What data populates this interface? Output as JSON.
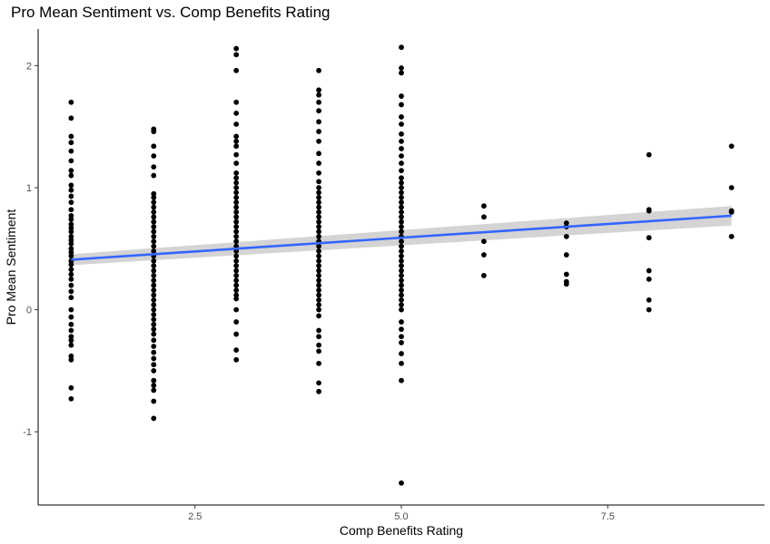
{
  "chart_data": {
    "type": "scatter",
    "title": "Pro Mean Sentiment vs. Comp Benefits Rating",
    "xlabel": "Comp Benefits Rating",
    "ylabel": "Pro Mean Sentiment",
    "xlim": [
      0.6,
      9.4
    ],
    "ylim": [
      -1.6,
      2.3
    ],
    "x_ticks": [
      2.5,
      5.0,
      7.5
    ],
    "x_tick_labels": [
      "2.5",
      "5.0",
      "7.5"
    ],
    "y_ticks": [
      -1,
      0,
      1,
      2
    ],
    "y_tick_labels": [
      "-1",
      "0",
      "1",
      "2"
    ],
    "grid": false,
    "point_color": "#000000",
    "trend": {
      "method": "linear",
      "line_color": "#3366ff",
      "band_color": "#cccccc",
      "x": [
        1,
        9
      ],
      "y": [
        0.41,
        0.77
      ],
      "band_halfwidth": [
        0.045,
        0.08
      ]
    },
    "series": [
      {
        "points": [
          [
            1,
            1.7
          ],
          [
            1,
            1.57
          ],
          [
            1,
            1.42
          ],
          [
            1,
            1.37
          ],
          [
            1,
            1.3
          ],
          [
            1,
            1.22
          ],
          [
            1,
            1.14
          ],
          [
            1,
            1.1
          ],
          [
            1,
            1.02
          ],
          [
            1,
            0.98
          ],
          [
            1,
            0.93
          ],
          [
            1,
            0.88
          ],
          [
            1,
            0.82
          ],
          [
            1,
            0.77
          ],
          [
            1,
            0.74
          ],
          [
            1,
            0.7
          ],
          [
            1,
            0.67
          ],
          [
            1,
            0.64
          ],
          [
            1,
            0.6
          ],
          [
            1,
            0.57
          ],
          [
            1,
            0.54
          ],
          [
            1,
            0.5
          ],
          [
            1,
            0.47
          ],
          [
            1,
            0.44
          ],
          [
            1,
            0.4
          ],
          [
            1,
            0.37
          ],
          [
            1,
            0.33
          ],
          [
            1,
            0.29
          ],
          [
            1,
            0.25
          ],
          [
            1,
            0.2
          ],
          [
            1,
            0.15
          ],
          [
            1,
            0.1
          ],
          [
            1,
            0.0
          ],
          [
            1,
            -0.06
          ],
          [
            1,
            -0.12
          ],
          [
            1,
            -0.17
          ],
          [
            1,
            -0.22
          ],
          [
            1,
            -0.25
          ],
          [
            1,
            -0.29
          ],
          [
            1,
            -0.38
          ],
          [
            1,
            -0.41
          ],
          [
            1,
            -0.64
          ],
          [
            1,
            -0.73
          ],
          [
            2,
            1.48
          ],
          [
            2,
            1.46
          ],
          [
            2,
            1.34
          ],
          [
            2,
            1.26
          ],
          [
            2,
            1.17
          ],
          [
            2,
            1.1
          ],
          [
            2,
            0.95
          ],
          [
            2,
            0.92
          ],
          [
            2,
            0.88
          ],
          [
            2,
            0.84
          ],
          [
            2,
            0.8
          ],
          [
            2,
            0.76
          ],
          [
            2,
            0.72
          ],
          [
            2,
            0.68
          ],
          [
            2,
            0.64
          ],
          [
            2,
            0.6
          ],
          [
            2,
            0.56
          ],
          [
            2,
            0.52
          ],
          [
            2,
            0.48
          ],
          [
            2,
            0.44
          ],
          [
            2,
            0.4
          ],
          [
            2,
            0.36
          ],
          [
            2,
            0.32
          ],
          [
            2,
            0.28
          ],
          [
            2,
            0.24
          ],
          [
            2,
            0.2
          ],
          [
            2,
            0.16
          ],
          [
            2,
            0.12
          ],
          [
            2,
            0.08
          ],
          [
            2,
            0.04
          ],
          [
            2,
            0.0
          ],
          [
            2,
            -0.04
          ],
          [
            2,
            -0.08
          ],
          [
            2,
            -0.12
          ],
          [
            2,
            -0.16
          ],
          [
            2,
            -0.2
          ],
          [
            2,
            -0.25
          ],
          [
            2,
            -0.3
          ],
          [
            2,
            -0.35
          ],
          [
            2,
            -0.4
          ],
          [
            2,
            -0.45
          ],
          [
            2,
            -0.5
          ],
          [
            2,
            -0.58
          ],
          [
            2,
            -0.62
          ],
          [
            2,
            -0.66
          ],
          [
            2,
            -0.75
          ],
          [
            2,
            -0.89
          ],
          [
            3,
            2.14
          ],
          [
            3,
            2.09
          ],
          [
            3,
            1.96
          ],
          [
            3,
            1.7
          ],
          [
            3,
            1.61
          ],
          [
            3,
            1.52
          ],
          [
            3,
            1.42
          ],
          [
            3,
            1.38
          ],
          [
            3,
            1.34
          ],
          [
            3,
            1.27
          ],
          [
            3,
            1.2
          ],
          [
            3,
            1.12
          ],
          [
            3,
            1.08
          ],
          [
            3,
            1.04
          ],
          [
            3,
            1.0
          ],
          [
            3,
            0.96
          ],
          [
            3,
            0.92
          ],
          [
            3,
            0.88
          ],
          [
            3,
            0.84
          ],
          [
            3,
            0.8
          ],
          [
            3,
            0.76
          ],
          [
            3,
            0.72
          ],
          [
            3,
            0.68
          ],
          [
            3,
            0.64
          ],
          [
            3,
            0.6
          ],
          [
            3,
            0.56
          ],
          [
            3,
            0.52
          ],
          [
            3,
            0.48
          ],
          [
            3,
            0.44
          ],
          [
            3,
            0.4
          ],
          [
            3,
            0.36
          ],
          [
            3,
            0.32
          ],
          [
            3,
            0.28
          ],
          [
            3,
            0.24
          ],
          [
            3,
            0.2
          ],
          [
            3,
            0.16
          ],
          [
            3,
            0.12
          ],
          [
            3,
            0.09
          ],
          [
            3,
            0.0
          ],
          [
            3,
            -0.1
          ],
          [
            3,
            -0.2
          ],
          [
            3,
            -0.33
          ],
          [
            3,
            -0.41
          ],
          [
            4,
            1.96
          ],
          [
            4,
            1.8
          ],
          [
            4,
            1.76
          ],
          [
            4,
            1.7
          ],
          [
            4,
            1.63
          ],
          [
            4,
            1.54
          ],
          [
            4,
            1.46
          ],
          [
            4,
            1.38
          ],
          [
            4,
            1.28
          ],
          [
            4,
            1.2
          ],
          [
            4,
            1.12
          ],
          [
            4,
            1.05
          ],
          [
            4,
            1.0
          ],
          [
            4,
            0.96
          ],
          [
            4,
            0.92
          ],
          [
            4,
            0.88
          ],
          [
            4,
            0.84
          ],
          [
            4,
            0.8
          ],
          [
            4,
            0.76
          ],
          [
            4,
            0.72
          ],
          [
            4,
            0.68
          ],
          [
            4,
            0.64
          ],
          [
            4,
            0.6
          ],
          [
            4,
            0.56
          ],
          [
            4,
            0.52
          ],
          [
            4,
            0.48
          ],
          [
            4,
            0.44
          ],
          [
            4,
            0.4
          ],
          [
            4,
            0.36
          ],
          [
            4,
            0.32
          ],
          [
            4,
            0.28
          ],
          [
            4,
            0.24
          ],
          [
            4,
            0.2
          ],
          [
            4,
            0.16
          ],
          [
            4,
            0.12
          ],
          [
            4,
            0.08
          ],
          [
            4,
            0.04
          ],
          [
            4,
            0.0
          ],
          [
            4,
            -0.05
          ],
          [
            4,
            -0.17
          ],
          [
            4,
            -0.22
          ],
          [
            4,
            -0.29
          ],
          [
            4,
            -0.34
          ],
          [
            4,
            -0.44
          ],
          [
            4,
            -0.6
          ],
          [
            4,
            -0.67
          ],
          [
            5,
            2.15
          ],
          [
            5,
            1.98
          ],
          [
            5,
            1.94
          ],
          [
            5,
            1.75
          ],
          [
            5,
            1.68
          ],
          [
            5,
            1.58
          ],
          [
            5,
            1.52
          ],
          [
            5,
            1.44
          ],
          [
            5,
            1.38
          ],
          [
            5,
            1.32
          ],
          [
            5,
            1.26
          ],
          [
            5,
            1.2
          ],
          [
            5,
            1.14
          ],
          [
            5,
            1.08
          ],
          [
            5,
            1.04
          ],
          [
            5,
            1.0
          ],
          [
            5,
            0.96
          ],
          [
            5,
            0.92
          ],
          [
            5,
            0.88
          ],
          [
            5,
            0.84
          ],
          [
            5,
            0.8
          ],
          [
            5,
            0.76
          ],
          [
            5,
            0.72
          ],
          [
            5,
            0.68
          ],
          [
            5,
            0.64
          ],
          [
            5,
            0.6
          ],
          [
            5,
            0.56
          ],
          [
            5,
            0.52
          ],
          [
            5,
            0.48
          ],
          [
            5,
            0.44
          ],
          [
            5,
            0.4
          ],
          [
            5,
            0.36
          ],
          [
            5,
            0.32
          ],
          [
            5,
            0.28
          ],
          [
            5,
            0.24
          ],
          [
            5,
            0.2
          ],
          [
            5,
            0.16
          ],
          [
            5,
            0.12
          ],
          [
            5,
            0.08
          ],
          [
            5,
            0.04
          ],
          [
            5,
            0.0
          ],
          [
            5,
            -0.1
          ],
          [
            5,
            -0.16
          ],
          [
            5,
            -0.22
          ],
          [
            5,
            -0.27
          ],
          [
            5,
            -0.36
          ],
          [
            5,
            -0.44
          ],
          [
            5,
            -0.58
          ],
          [
            5,
            -1.42
          ],
          [
            6,
            0.85
          ],
          [
            6,
            0.76
          ],
          [
            6,
            0.56
          ],
          [
            6,
            0.45
          ],
          [
            6,
            0.28
          ],
          [
            7,
            0.71
          ],
          [
            7,
            0.68
          ],
          [
            7,
            0.6
          ],
          [
            7,
            0.45
          ],
          [
            7,
            0.29
          ],
          [
            7,
            0.23
          ],
          [
            7,
            0.21
          ],
          [
            8,
            1.27
          ],
          [
            8,
            0.82
          ],
          [
            8,
            0.81
          ],
          [
            8,
            0.59
          ],
          [
            8,
            0.32
          ],
          [
            8,
            0.25
          ],
          [
            8,
            0.08
          ],
          [
            8,
            0.0
          ],
          [
            9,
            1.34
          ],
          [
            9,
            1.0
          ],
          [
            9,
            0.81
          ],
          [
            9,
            0.8
          ],
          [
            9,
            0.6
          ]
        ]
      }
    ]
  }
}
